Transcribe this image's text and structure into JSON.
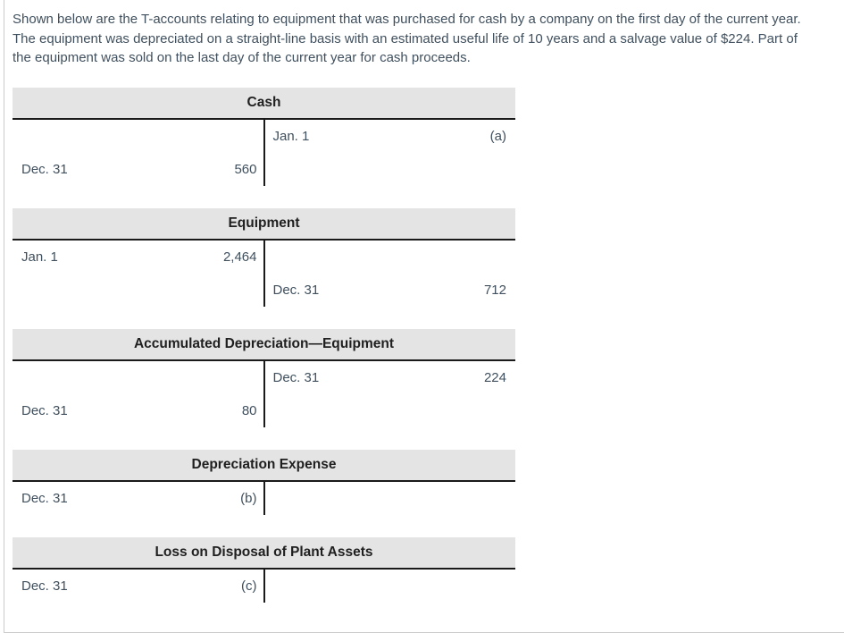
{
  "intro": {
    "lines": [
      "Shown below are the T-accounts relating to equipment that was purchased for cash by a company on the first day of the current year.",
      "The equipment was depreciated on a straight-line basis with an estimated useful life of 10 years and a salvage value of $224. Part of",
      "the equipment was sold on the last day of the current year for cash proceeds."
    ]
  },
  "accounts": [
    {
      "title": "Cash",
      "rows": [
        {
          "side": "right",
          "date": "Jan. 1",
          "amount": "(a)"
        },
        {
          "side": "left",
          "date": "Dec. 31",
          "amount": "560"
        }
      ]
    },
    {
      "title": "Equipment",
      "rows": [
        {
          "side": "left",
          "date": "Jan. 1",
          "amount": "2,464"
        },
        {
          "side": "right",
          "date": "Dec. 31",
          "amount": "712"
        }
      ]
    },
    {
      "title": "Accumulated Depreciation—Equipment",
      "rows": [
        {
          "side": "right",
          "date": "Dec. 31",
          "amount": "224"
        },
        {
          "side": "left",
          "date": "Dec. 31",
          "amount": "80"
        }
      ]
    },
    {
      "title": "Depreciation Expense",
      "rows": [
        {
          "side": "left",
          "date": "Dec. 31",
          "amount": "(b)"
        }
      ]
    },
    {
      "title": "Loss on Disposal of Plant Assets",
      "rows": [
        {
          "side": "left",
          "date": "Dec. 31",
          "amount": "(c)"
        }
      ]
    }
  ],
  "colors": {
    "header_bg": "#e4e4e4",
    "rule": "#1a1a1a",
    "body_text": "#40505e",
    "title_text": "#1f1f1f",
    "page_border": "#cbcbcb"
  }
}
